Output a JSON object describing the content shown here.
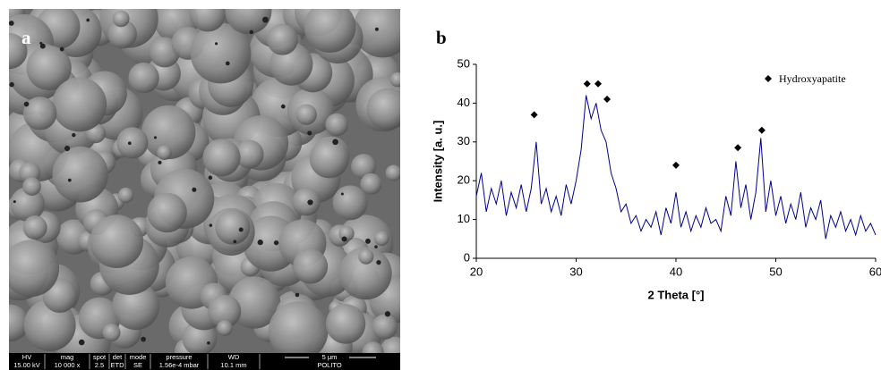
{
  "panel_a": {
    "label": "a",
    "info_bar": {
      "headers": [
        "HV",
        "mag",
        "spot",
        "det",
        "mode",
        "pressure",
        "WD"
      ],
      "values": [
        "15.00 kV",
        "10 000 x",
        "2.5",
        "ETD",
        "SE",
        "1.56e-4 mbar",
        "10.1 mm"
      ],
      "scale_bar": "5 μm",
      "institution": "POLITO"
    }
  },
  "chart_data": {
    "type": "line",
    "panel_label": "b",
    "x_label": "2 Theta [°]",
    "y_label": "Intensity [a. u.]",
    "xlim": [
      20,
      60
    ],
    "ylim": [
      0,
      50
    ],
    "xticks": [
      20,
      30,
      40,
      50,
      60
    ],
    "yticks": [
      0,
      10,
      20,
      30,
      40,
      50
    ],
    "grid": false,
    "legend": "upper right",
    "series": [
      {
        "type": "line",
        "color": "#00008b",
        "x": [
          20,
          20.5,
          21,
          21.5,
          22,
          22.5,
          23,
          23.5,
          24,
          24.5,
          25,
          25.5,
          26,
          26.5,
          27,
          27.5,
          28,
          28.5,
          29,
          29.5,
          30,
          30.5,
          31,
          31.5,
          32,
          32.5,
          33,
          33.5,
          34,
          34.5,
          35,
          35.5,
          36,
          36.5,
          37,
          37.5,
          38,
          38.5,
          39,
          39.5,
          40,
          40.5,
          41,
          41.5,
          42,
          42.5,
          43,
          43.5,
          44,
          44.5,
          45,
          45.5,
          46,
          46.5,
          47,
          47.5,
          48,
          48.5,
          49,
          49.5,
          50,
          50.5,
          51,
          51.5,
          52,
          52.5,
          53,
          53.5,
          54,
          54.5,
          55,
          55.5,
          56,
          56.5,
          57,
          57.5,
          58,
          58.5,
          59,
          59.5,
          60
        ],
        "values": [
          16,
          22,
          12,
          18,
          14,
          20,
          11,
          17,
          13,
          19,
          12,
          18,
          30,
          14,
          18,
          12,
          16,
          11,
          19,
          14,
          20,
          28,
          42,
          36,
          40,
          33,
          30,
          22,
          18,
          12,
          14,
          9,
          11,
          7,
          10,
          8,
          12,
          6,
          13,
          9,
          17,
          8,
          12,
          7,
          11,
          8,
          13,
          9,
          10,
          7,
          16,
          11,
          25,
          13,
          19,
          10,
          17,
          31,
          12,
          20,
          11,
          16,
          9,
          14,
          10,
          17,
          8,
          13,
          10,
          15,
          5,
          11,
          8,
          12,
          7,
          10,
          6,
          11,
          7,
          9,
          6
        ]
      },
      {
        "type": "scatter",
        "name": "Hydroxyapatite",
        "color": "#000000",
        "x": [
          25.8,
          31.1,
          32.2,
          33.1,
          40,
          46.2,
          48.6
        ],
        "values": [
          37,
          45,
          45,
          41,
          24,
          28.5,
          33
        ]
      }
    ]
  }
}
